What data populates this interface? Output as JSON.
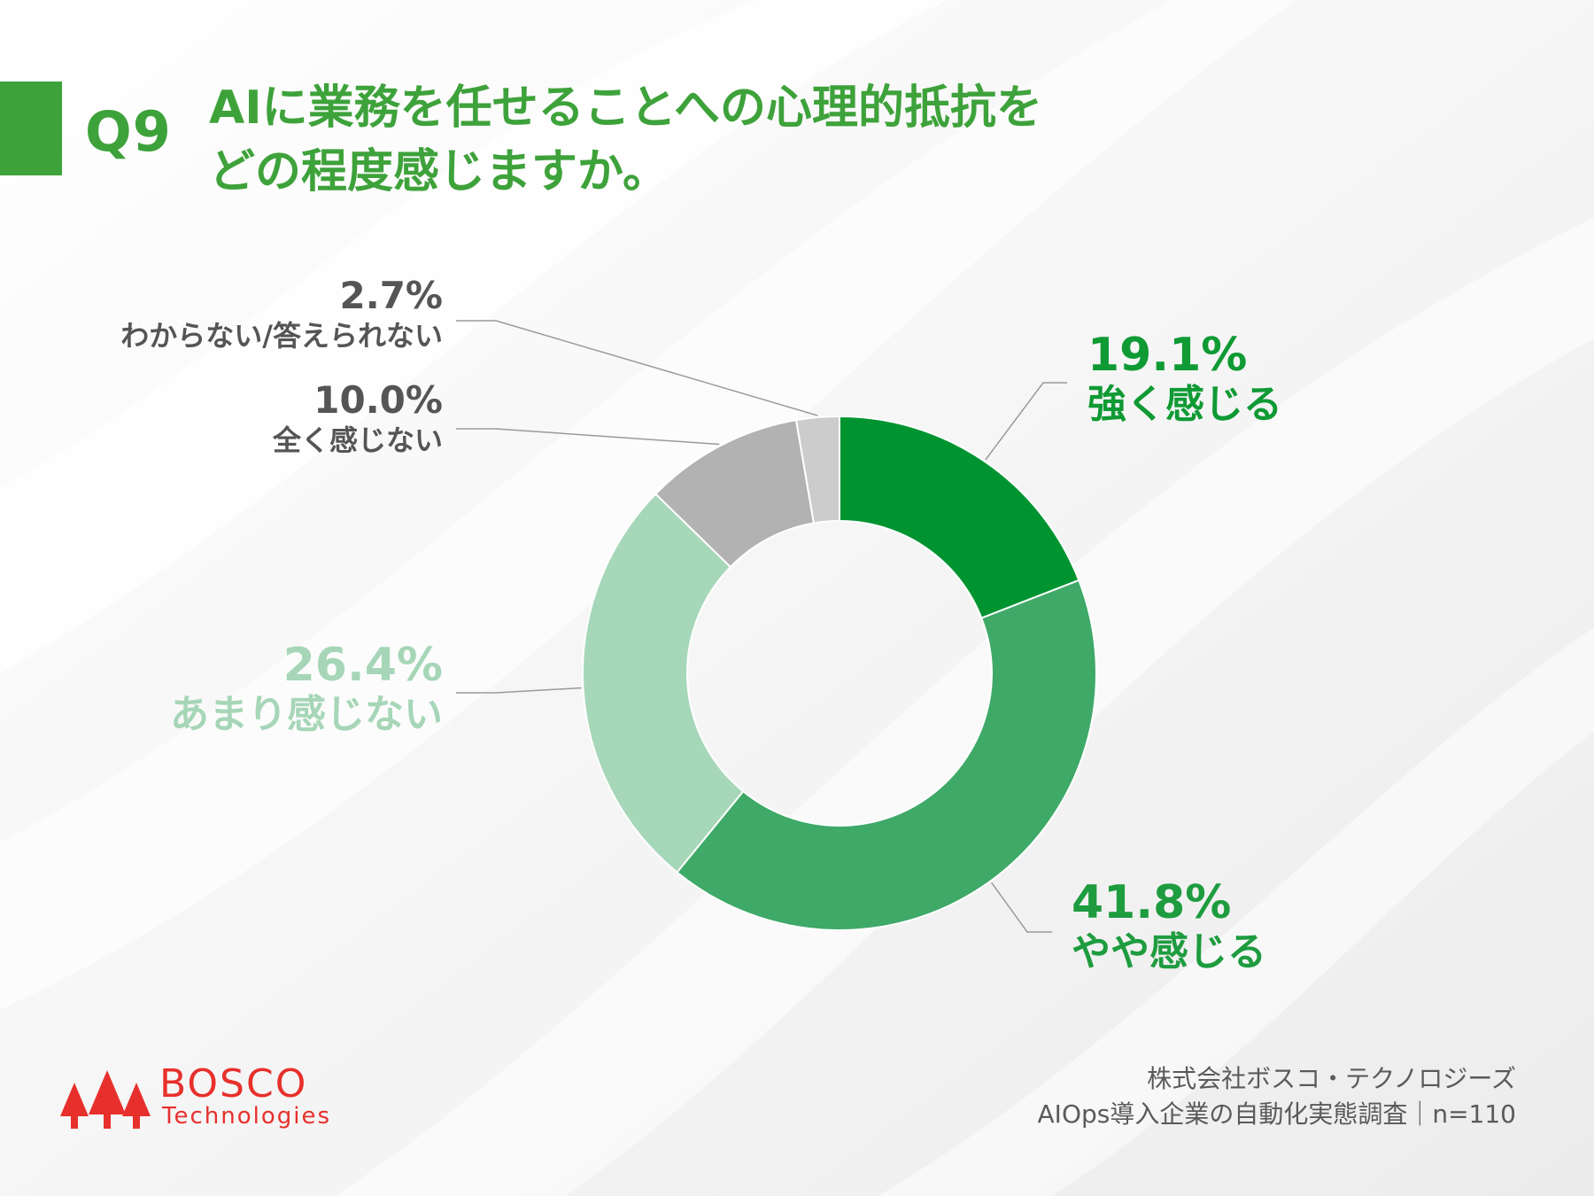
{
  "header": {
    "question_number": "Q9",
    "question_line1": "AIに業務を任せることへの心理的抵抗を",
    "question_line2": "どの程度感じますか。"
  },
  "chart_data": {
    "type": "pie",
    "donut": true,
    "title": "AIに業務を任せることへの心理的抵抗をどの程度感じますか。",
    "series": [
      {
        "name": "強く感じる",
        "label": "19.1%",
        "value": 19.1,
        "color": "#009431"
      },
      {
        "name": "やや感じる",
        "label": "41.8%",
        "value": 41.8,
        "color": "#3fa968"
      },
      {
        "name": "あまり感じない",
        "label": "26.4%",
        "value": 26.4,
        "color": "#a7d7b9"
      },
      {
        "name": "全く感じない",
        "label": "10.0%",
        "value": 10.0,
        "color": "#b2b2b2"
      },
      {
        "name": "わからない/答えられない",
        "label": "2.7%",
        "value": 2.7,
        "color": "#cccccc"
      }
    ],
    "label_colors": [
      "#0f9a34",
      "#1e9c3f",
      "#a6d6b7",
      "#555555",
      "#555555"
    ]
  },
  "footer": {
    "company": "株式会社ボスコ・テクノロジーズ",
    "survey": "AIOps導入企業の自動化実態調査｜n=110"
  },
  "logo": {
    "name": "BOSCO",
    "sub": "Technologies",
    "color": "#e7302c"
  }
}
